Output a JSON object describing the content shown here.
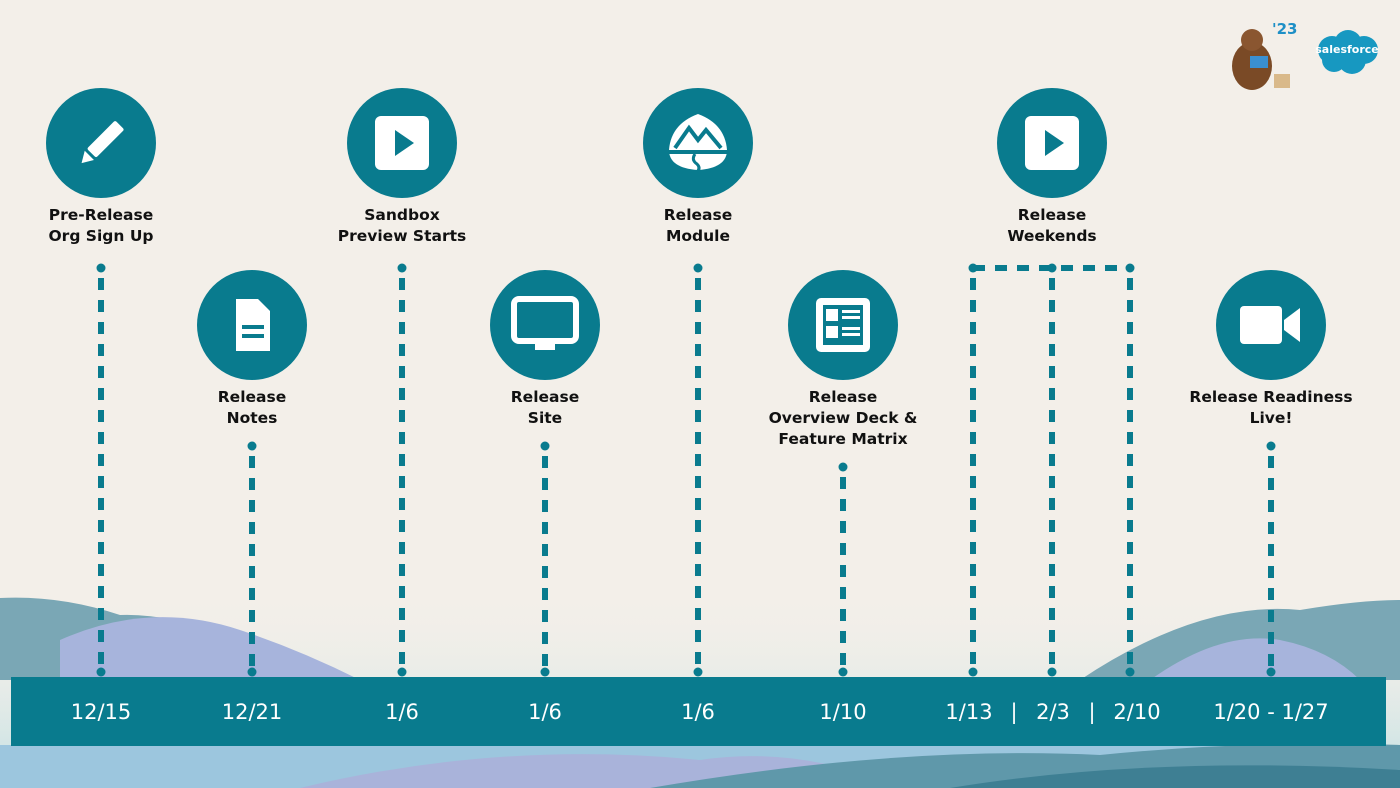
{
  "brand": {
    "year": "'23",
    "logo_text": "salesforce"
  },
  "colors": {
    "teal": "#097b8e",
    "background": "#f3efe9",
    "salesforce_blue": "#1798c1"
  },
  "milestones": [
    {
      "label_line1": "Pre-Release",
      "label_line2": "Org Sign Up",
      "date": "12/15",
      "icon": "pencil-icon"
    },
    {
      "label_line1": "Release",
      "label_line2": "Notes",
      "date": "12/21",
      "icon": "document-icon"
    },
    {
      "label_line1": "Sandbox",
      "label_line2": "Preview Starts",
      "date": "1/6",
      "icon": "play-icon"
    },
    {
      "label_line1": "Release",
      "label_line2": "Site",
      "date": "1/6",
      "icon": "monitor-icon"
    },
    {
      "label_line1": "Release",
      "label_line2": "Module",
      "date": "1/6",
      "icon": "trailhead-module-icon"
    },
    {
      "label_line1": "Release",
      "label_line2": "Overview Deck &",
      "label_line3": "Feature Matrix",
      "date": "1/10",
      "icon": "feature-matrix-icon"
    },
    {
      "label_line1": "Release",
      "label_line2": "Weekends",
      "dates": [
        "1/13",
        "2/3",
        "2/10"
      ],
      "separator": "|",
      "icon": "play-icon"
    },
    {
      "label_line1": "Release Readiness",
      "label_line2": "Live!",
      "date": "1/20 - 1/27",
      "icon": "video-camera-icon"
    }
  ]
}
